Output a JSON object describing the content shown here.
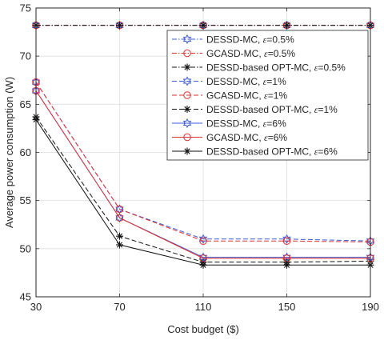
{
  "chart_data": {
    "type": "line",
    "title": "",
    "xlabel": "Cost budget ($)",
    "ylabel": "Average power consumption (W)",
    "categories": [
      30,
      70,
      110,
      150,
      190
    ],
    "xlim": [
      30,
      190
    ],
    "ylim": [
      45,
      75
    ],
    "xticks": [
      "30",
      "70",
      "110",
      "150",
      "190"
    ],
    "yticks": [
      "45",
      "50",
      "55",
      "60",
      "65",
      "70",
      "75"
    ],
    "grid": true,
    "legend_position": "top-right",
    "series": [
      {
        "name": "DESSD-MC, ε=0.5%",
        "label_main": "DESSD-MC, ",
        "label_eps": "ε",
        "label_tail": "=0.5%",
        "color": "#3b5bdb",
        "dash": "dashdot",
        "marker": "hexagram",
        "values": [
          73.2,
          73.2,
          73.2,
          73.2,
          73.2
        ]
      },
      {
        "name": "GCASD-MC, ε=0.5%",
        "label_main": "GCASD-MC, ",
        "label_eps": "ε",
        "label_tail": "=0.5%",
        "color": "#e03131",
        "dash": "dashdot",
        "marker": "circle",
        "values": [
          73.2,
          73.2,
          73.2,
          73.2,
          73.2
        ]
      },
      {
        "name": "DESSD-based OPT-MC, ε=0.5%",
        "label_main": "DESSD-based OPT-MC, ",
        "label_eps": "ε",
        "label_tail": "=0.5%",
        "color": "#111111",
        "dash": "dashdot",
        "marker": "asterisk",
        "values": [
          73.2,
          73.2,
          73.2,
          73.2,
          73.2
        ]
      },
      {
        "name": "DESSD-MC, ε=1%",
        "label_main": "DESSD-MC, ",
        "label_eps": "ε",
        "label_tail": "=1%",
        "color": "#3b5bdb",
        "dash": "dashed",
        "marker": "hexagram",
        "values": [
          67.3,
          54.1,
          51.0,
          51.0,
          50.8
        ]
      },
      {
        "name": "GCASD-MC, ε=1%",
        "label_main": "GCASD-MC, ",
        "label_eps": "ε",
        "label_tail": "=1%",
        "color": "#e03131",
        "dash": "dashed",
        "marker": "circle",
        "values": [
          67.3,
          54.1,
          50.8,
          50.8,
          50.7
        ]
      },
      {
        "name": "DESSD-based OPT-MC, ε=1%",
        "label_main": "DESSD-based OPT-MC, ",
        "label_eps": "ε",
        "label_tail": "=1%",
        "color": "#111111",
        "dash": "dashed",
        "marker": "asterisk",
        "values": [
          63.7,
          51.3,
          48.6,
          48.6,
          48.7
        ]
      },
      {
        "name": "DESSD-MC, ε=6%",
        "label_main": "DESSD-MC, ",
        "label_eps": "ε",
        "label_tail": "=6%",
        "color": "#3b5bdb",
        "dash": "solid",
        "marker": "hexagram",
        "values": [
          66.4,
          53.2,
          49.1,
          49.1,
          49.1
        ]
      },
      {
        "name": "GCASD-MC, ε=6%",
        "label_main": "GCASD-MC, ",
        "label_eps": "ε",
        "label_tail": "=6%",
        "color": "#e03131",
        "dash": "solid",
        "marker": "circle",
        "values": [
          66.4,
          53.2,
          49.0,
          49.0,
          49.0
        ]
      },
      {
        "name": "DESSD-based OPT-MC, ε=6%",
        "label_main": "DESSD-based OPT-MC, ",
        "label_eps": "ε",
        "label_tail": "=6%",
        "color": "#111111",
        "dash": "solid",
        "marker": "asterisk",
        "values": [
          63.4,
          50.4,
          48.3,
          48.3,
          48.3
        ]
      }
    ]
  }
}
